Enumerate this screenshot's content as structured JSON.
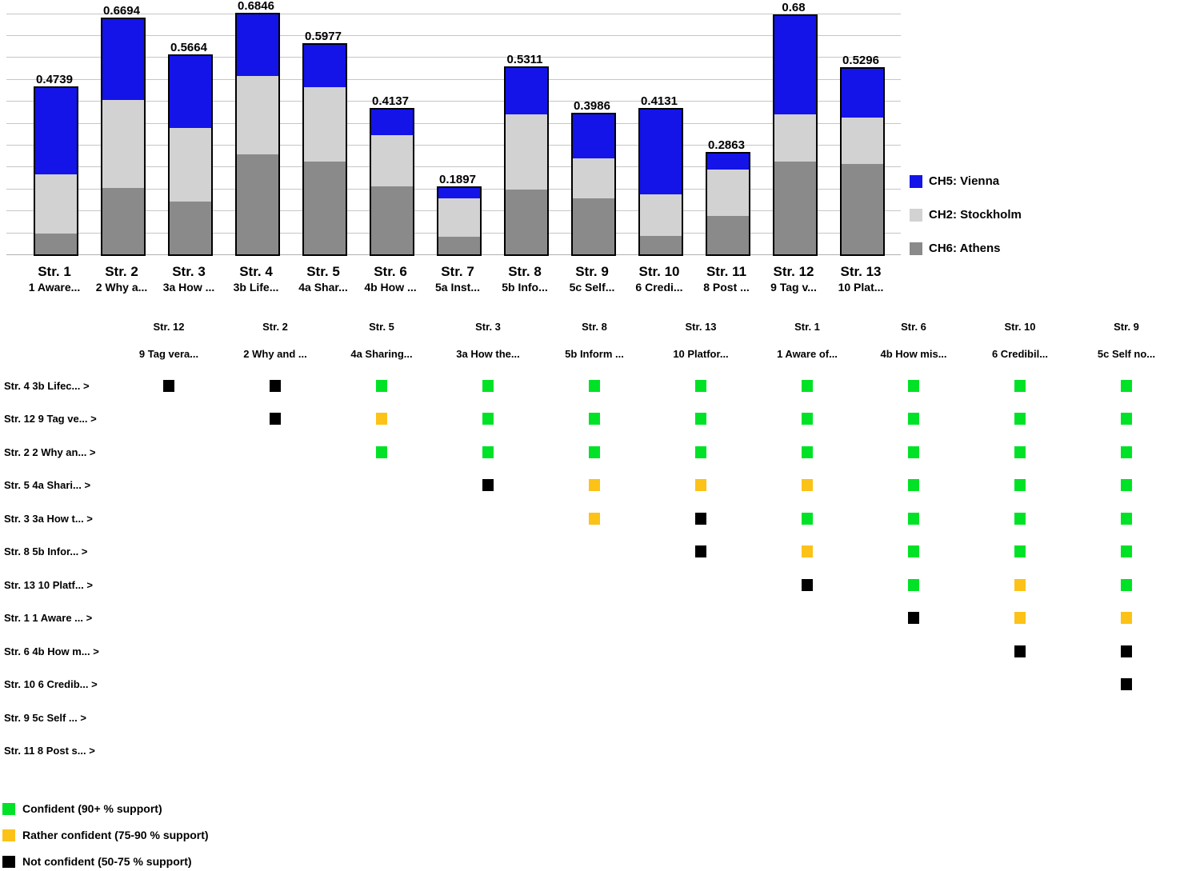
{
  "chart_data": [
    {
      "type": "bar",
      "stacked": true,
      "title": "",
      "xlabel": "",
      "ylabel": "",
      "ylim": [
        0,
        0.6875
      ],
      "gridline_step": 0.0625,
      "grid": true,
      "legend_position": "right",
      "categories": [
        "Str. 1",
        "Str. 2",
        "Str. 3",
        "Str. 4",
        "Str. 5",
        "Str. 6",
        "Str. 7",
        "Str. 8",
        "Str. 9",
        "Str. 10",
        "Str. 11",
        "Str. 12",
        "Str. 13"
      ],
      "category_descs": [
        "1 Aware...",
        "2 Why a...",
        "3a How ...",
        "3b Life...",
        "4a Shar...",
        "4b How ...",
        "5a Inst...",
        "5b Info...",
        "5c Self...",
        "6 Credi...",
        "8 Post ...",
        "9 Tag v...",
        "10 Plat..."
      ],
      "series": [
        {
          "name": "CH6: Athens",
          "color": "#8a8a8a",
          "values": [
            0.059,
            0.189,
            0.15,
            0.285,
            0.264,
            0.194,
            0.05,
            0.185,
            0.159,
            0.052,
            0.11,
            0.264,
            0.258
          ]
        },
        {
          "name": "CH2: Stockholm",
          "color": "#d2d2d2",
          "values": [
            0.168,
            0.251,
            0.21,
            0.224,
            0.211,
            0.146,
            0.109,
            0.214,
            0.114,
            0.119,
            0.133,
            0.134,
            0.132
          ]
        },
        {
          "name": "CH5: Vienna",
          "color": "#1414e8",
          "values": [
            0.2469,
            0.2294,
            0.2064,
            0.1756,
            0.1227,
            0.0737,
            0.0307,
            0.1321,
            0.1256,
            0.2421,
            0.0433,
            0.282,
            0.1396
          ]
        }
      ],
      "totals": [
        0.4739,
        0.6694,
        0.5664,
        0.6846,
        0.5977,
        0.4137,
        0.1897,
        0.5311,
        0.3986,
        0.4131,
        0.2863,
        0.68,
        0.5296
      ],
      "total_labels": [
        "0.4739",
        "0.6694",
        "0.5664",
        "0.6846",
        "0.5977",
        "0.4137",
        "0.1897",
        "0.5311",
        "0.3986",
        "0.4131",
        "0.2863",
        "0.68",
        "0.5296"
      ],
      "legend_order": [
        "CH5: Vienna",
        "CH2: Stockholm",
        "CH6: Athens"
      ]
    },
    {
      "type": "heatmap",
      "columns": [
        {
          "name": "Str. 12",
          "desc": "9 Tag vera..."
        },
        {
          "name": "Str. 2",
          "desc": "2 Why and ..."
        },
        {
          "name": "Str. 5",
          "desc": "4a Sharing..."
        },
        {
          "name": "Str. 3",
          "desc": "3a How the..."
        },
        {
          "name": "Str. 8",
          "desc": "5b Inform ..."
        },
        {
          "name": "Str. 13",
          "desc": "10 Platfor..."
        },
        {
          "name": "Str. 1",
          "desc": "1 Aware of..."
        },
        {
          "name": "Str. 6",
          "desc": "4b How mis..."
        },
        {
          "name": "Str. 10",
          "desc": "6 Credibil..."
        },
        {
          "name": "Str. 9",
          "desc": "5c Self no..."
        }
      ],
      "rows": [
        {
          "label": "Str. 4 3b Lifec... >",
          "cells": [
            "K",
            "K",
            "G",
            "G",
            "G",
            "G",
            "G",
            "G",
            "G",
            "G"
          ]
        },
        {
          "label": "Str. 12 9 Tag ve... >",
          "cells": [
            "",
            "K",
            "O",
            "G",
            "G",
            "G",
            "G",
            "G",
            "G",
            "G"
          ]
        },
        {
          "label": "Str. 2 2 Why an... >",
          "cells": [
            "",
            "",
            "G",
            "G",
            "G",
            "G",
            "G",
            "G",
            "G",
            "G"
          ]
        },
        {
          "label": "Str. 5 4a Shari... >",
          "cells": [
            "",
            "",
            "",
            "K",
            "O",
            "O",
            "O",
            "G",
            "G",
            "G"
          ]
        },
        {
          "label": "Str. 3 3a How t... >",
          "cells": [
            "",
            "",
            "",
            "",
            "O",
            "K",
            "G",
            "G",
            "G",
            "G"
          ]
        },
        {
          "label": "Str. 8 5b Infor... >",
          "cells": [
            "",
            "",
            "",
            "",
            "",
            "K",
            "O",
            "G",
            "G",
            "G"
          ]
        },
        {
          "label": "Str. 13 10 Platf... >",
          "cells": [
            "",
            "",
            "",
            "",
            "",
            "",
            "K",
            "G",
            "O",
            "G"
          ]
        },
        {
          "label": "Str. 1 1 Aware ... >",
          "cells": [
            "",
            "",
            "",
            "",
            "",
            "",
            "",
            "K",
            "O",
            "O"
          ]
        },
        {
          "label": "Str. 6 4b How m... >",
          "cells": [
            "",
            "",
            "",
            "",
            "",
            "",
            "",
            "",
            "K",
            "K"
          ]
        },
        {
          "label": "Str. 10 6 Credib... >",
          "cells": [
            "",
            "",
            "",
            "",
            "",
            "",
            "",
            "",
            "",
            "K"
          ]
        },
        {
          "label": "Str. 9 5c Self ... >",
          "cells": [
            "",
            "",
            "",
            "",
            "",
            "",
            "",
            "",
            "",
            ""
          ]
        },
        {
          "label": "Str. 11 8 Post s... >",
          "cells": [
            "",
            "",
            "",
            "",
            "",
            "",
            "",
            "",
            "",
            ""
          ]
        }
      ],
      "cell_legend": [
        {
          "code": "G",
          "label": "Confident (90+ % support)",
          "color": "#00e226"
        },
        {
          "code": "O",
          "label": "Rather confident (75-90 % support)",
          "color": "#fcc218"
        },
        {
          "code": "K",
          "label": "Not confident (50-75 % support)",
          "color": "#000000"
        }
      ]
    }
  ]
}
